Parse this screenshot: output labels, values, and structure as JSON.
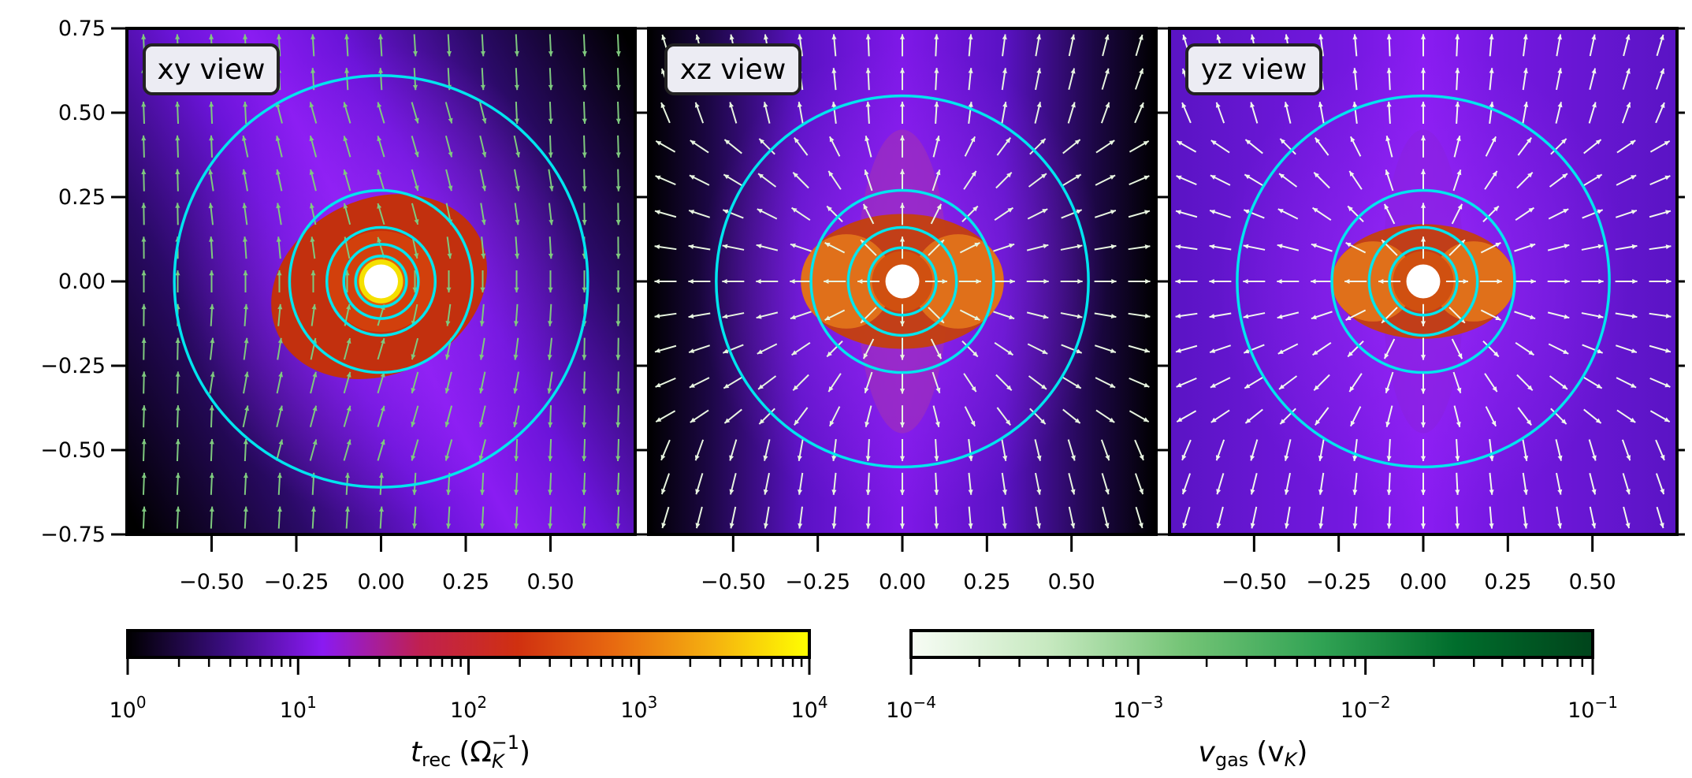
{
  "chart_data": [
    {
      "type": "heatmap",
      "view": "xy view",
      "xlim": [
        -0.75,
        0.75
      ],
      "ylim": [
        -0.75,
        0.75
      ],
      "xticks": [
        "−0.50",
        "−0.25",
        "0.00",
        "0.25",
        "0.50"
      ],
      "yticks": [
        "0.75",
        "0.50",
        "0.25",
        "0.00",
        "−0.25",
        "−0.50",
        "−0.75"
      ],
      "contour_radii": [
        0.61,
        0.27,
        0.16,
        0.11,
        0.075
      ],
      "inner_hole_radius": 0.05,
      "high_t_rec_region": {
        "shape": "ellipse",
        "tilted": true,
        "extent_x": 0.33,
        "extent_y": 0.26
      },
      "arrow_color": "#7fc97f",
      "background": "purple band tilted diagonally, black corners"
    },
    {
      "type": "heatmap",
      "view": "xz view",
      "xlim": [
        -0.75,
        0.75
      ],
      "ylim": [
        -0.75,
        0.75
      ],
      "xticks": [
        "−0.50",
        "−0.25",
        "0.00",
        "0.25",
        "0.50"
      ],
      "contour_radii": [
        0.55,
        0.27,
        0.16,
        0.1
      ],
      "inner_hole_radius": 0.05,
      "high_t_rec_region": {
        "shape": "lobes",
        "extent_x": 0.3,
        "extent_y": 0.2
      },
      "arrow_color": "#e8f5e0",
      "background": "vertical purple band, black sides"
    },
    {
      "type": "heatmap",
      "view": "yz view",
      "xlim": [
        -0.75,
        0.75
      ],
      "ylim": [
        -0.75,
        0.75
      ],
      "xticks": [
        "−0.50",
        "−0.25",
        "0.00",
        "0.25",
        "0.50"
      ],
      "contour_radii": [
        0.55,
        0.27,
        0.16,
        0.1
      ],
      "inner_hole_radius": 0.05,
      "high_t_rec_region": {
        "shape": "lobes",
        "extent_x": 0.27,
        "extent_y": 0.17
      },
      "arrow_color": "#f2f8ee",
      "background": "purple throughout"
    }
  ],
  "colorbars": [
    {
      "name": "t_rec",
      "label_var": "t",
      "label_sub": "rec",
      "label_units": "(Ω",
      "label_units_sub": "K",
      "label_units_sup": "−1",
      "label_close": ")",
      "scale": "log",
      "range": [
        1,
        10000
      ],
      "tick_labels": [
        {
          "base": "10",
          "exp": "0"
        },
        {
          "base": "10",
          "exp": "1"
        },
        {
          "base": "10",
          "exp": "2"
        },
        {
          "base": "10",
          "exp": "3"
        },
        {
          "base": "10",
          "exp": "4"
        }
      ],
      "colormap": [
        "#000000",
        "#3a0d80",
        "#8a1af2",
        "#c02050",
        "#d03010",
        "#e86a10",
        "#f5b010",
        "#ffff00"
      ]
    },
    {
      "name": "v_gas",
      "label_var": "v",
      "label_sub": "gas",
      "label_units": "(v",
      "label_units_sub": "K",
      "label_close": ")",
      "scale": "log",
      "range": [
        0.0001,
        0.1
      ],
      "tick_labels": [
        {
          "base": "10",
          "exp": "−4"
        },
        {
          "base": "10",
          "exp": "−3"
        },
        {
          "base": "10",
          "exp": "−2"
        },
        {
          "base": "10",
          "exp": "−1"
        }
      ],
      "colormap": [
        "#f7fcf5",
        "#c7e9c0",
        "#74c476",
        "#31a354",
        "#006d2c",
        "#00441b"
      ]
    }
  ],
  "colors": {
    "contour": "#00e5ee",
    "hole": "#ffffff",
    "label_box": "#ececf3"
  }
}
